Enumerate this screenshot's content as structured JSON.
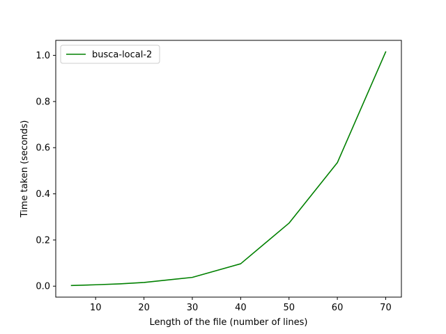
{
  "chart_data": {
    "type": "line",
    "title": "",
    "xlabel": "Length of the file (number of lines)",
    "ylabel": "Time taken (seconds)",
    "xlim": [
      1.75,
      73.25
    ],
    "ylim": [
      -0.0475,
      1.065
    ],
    "x_ticks": [
      10,
      20,
      30,
      40,
      50,
      60,
      70
    ],
    "x_tick_labels": [
      "10",
      "20",
      "30",
      "40",
      "50",
      "60",
      "70"
    ],
    "y_ticks": [
      0.0,
      0.2,
      0.4,
      0.6,
      0.8,
      1.0
    ],
    "y_tick_labels": [
      "0.0",
      "0.2",
      "0.4",
      "0.6",
      "0.8",
      "1.0"
    ],
    "grid": false,
    "legend_position": "top-left",
    "series": [
      {
        "name": "busca-local-2",
        "color": "#008000",
        "x": [
          5,
          10,
          15,
          20,
          30,
          40,
          50,
          60,
          70
        ],
        "y": [
          0.003,
          0.006,
          0.01,
          0.016,
          0.038,
          0.097,
          0.273,
          0.535,
          1.015
        ]
      }
    ]
  }
}
